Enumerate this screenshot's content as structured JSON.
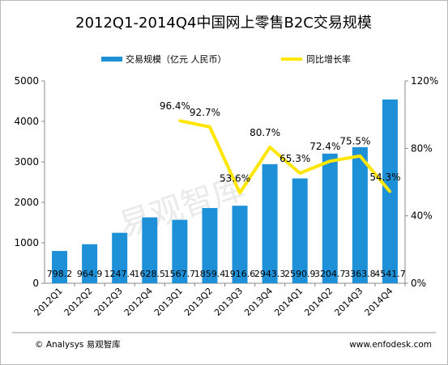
{
  "footer": {
    "left": "© Analysys 易观智库",
    "right": "www.enfodesk.com"
  },
  "watermark": "易观智库",
  "chart_data": {
    "type": "bar",
    "title": "2012Q1-2014Q4中国网上零售B2C交易规模",
    "categories": [
      "2012Q1",
      "2012Q2",
      "2012Q3",
      "2012Q4",
      "2013Q1",
      "2013Q2",
      "2013Q3",
      "2013Q4",
      "2014Q1",
      "2014Q2",
      "2014Q3",
      "2014Q4"
    ],
    "series": [
      {
        "name": "交易规模（亿元 人民币）",
        "type": "bar",
        "axis": "left",
        "color": "#1e90d8",
        "values": [
          798.2,
          964.9,
          1247.4,
          1628.5,
          1567.7,
          1859.4,
          1916.6,
          2943.3,
          2590.9,
          3204.7,
          3363.8,
          4541.7
        ],
        "labels": [
          "798.2",
          "964.9",
          "1247.4",
          "1628.5",
          "1567.7",
          "1859.4",
          "1916.6",
          "2943.3",
          "2590.9",
          "3204.7",
          "3363.8",
          "4541.7"
        ]
      },
      {
        "name": "同比增长率",
        "type": "line",
        "axis": "right",
        "color": "#ffe600",
        "values": [
          null,
          null,
          null,
          null,
          96.4,
          92.7,
          53.6,
          80.7,
          65.3,
          72.4,
          75.5,
          54.3
        ],
        "labels": [
          "",
          "",
          "",
          "",
          "96.4%",
          "92.7%",
          "53.6%",
          "80.7%",
          "65.3%",
          "72.4%",
          "75.5%",
          "54.3%"
        ]
      }
    ],
    "y_left": {
      "min": 0,
      "max": 5000,
      "ticks": [
        "0",
        "1000",
        "2000",
        "3000",
        "4000",
        "5000"
      ]
    },
    "y_right": {
      "min": 0,
      "max": 120,
      "ticks": [
        "0%",
        "40%",
        "80%",
        "120%"
      ]
    },
    "grid": false,
    "legend_position": "top"
  }
}
